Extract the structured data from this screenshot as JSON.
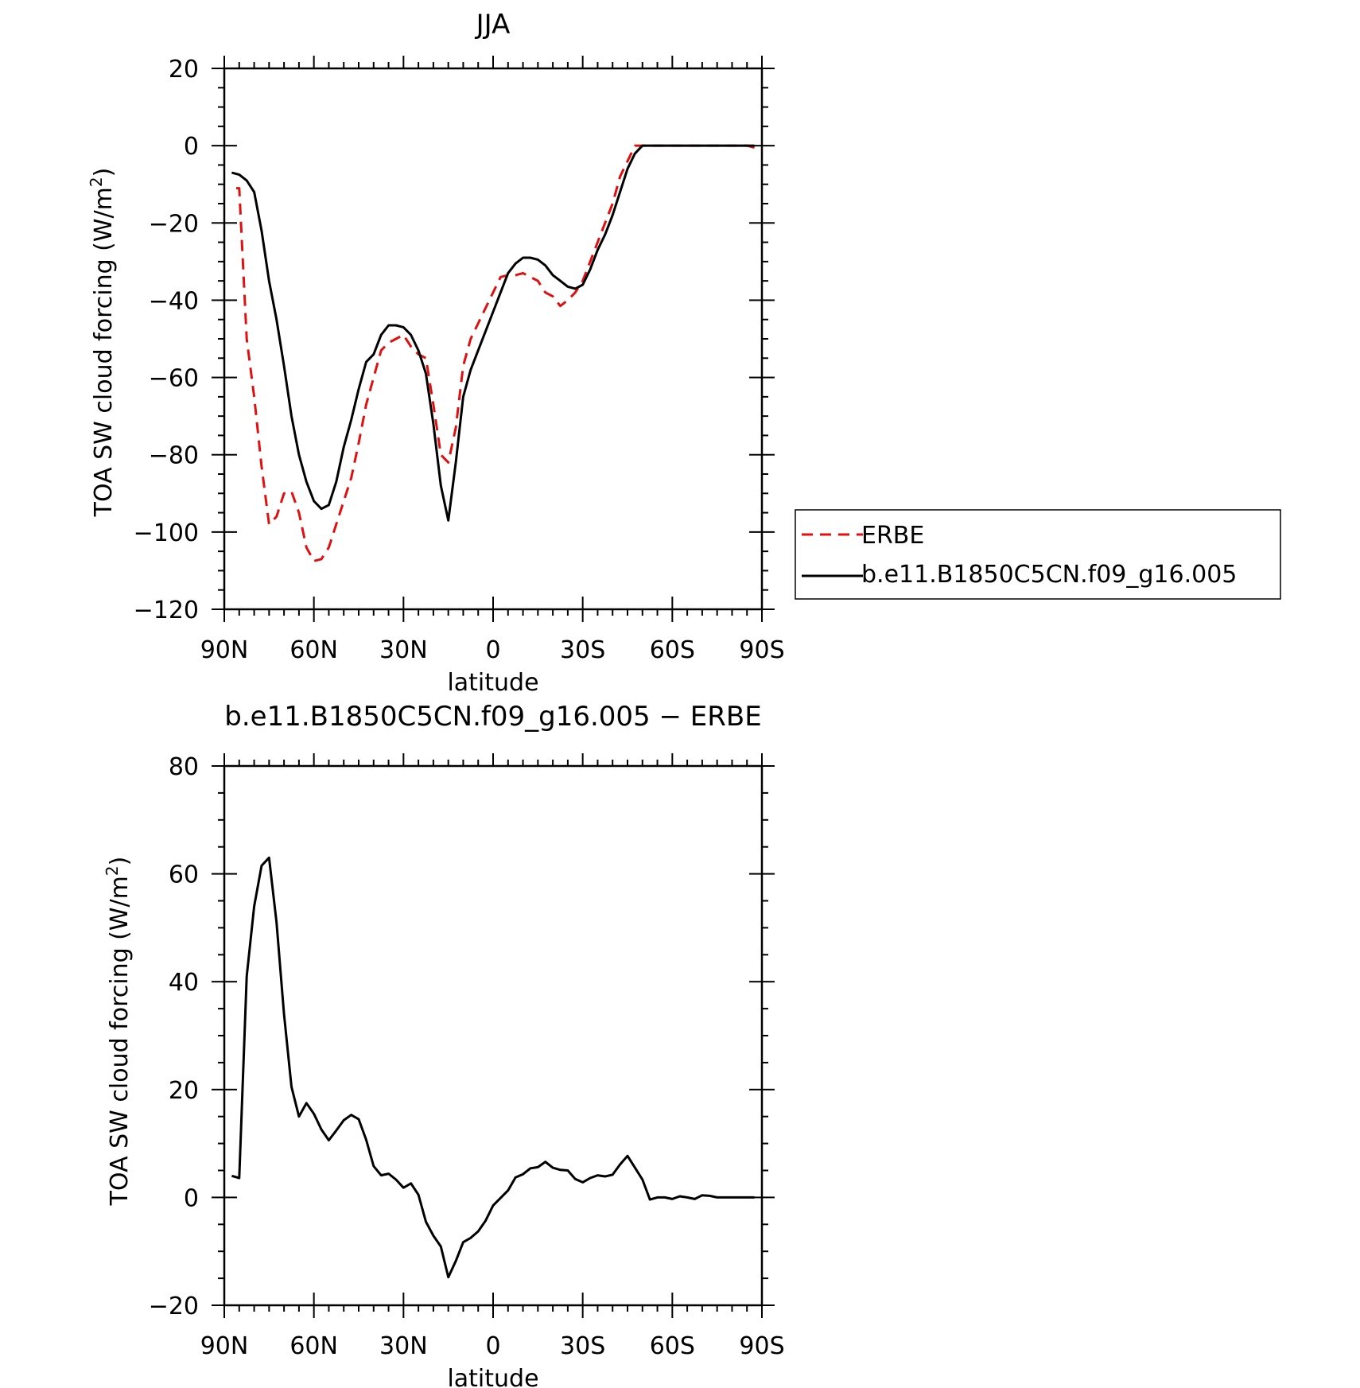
{
  "chart_data": [
    {
      "type": "line",
      "title": "JJA",
      "xlabel": "latitude",
      "ylabel_main": "TOA SW cloud forcing (W/m",
      "ylabel_sup": "2",
      "ylabel_close": ")",
      "xlim": [
        90,
        -90
      ],
      "ylim": [
        -120,
        20
      ],
      "xticks": [
        {
          "value": 90,
          "label": "90N"
        },
        {
          "value": 60,
          "label": "60N"
        },
        {
          "value": 30,
          "label": "30N"
        },
        {
          "value": 0,
          "label": "0"
        },
        {
          "value": -30,
          "label": "30S"
        },
        {
          "value": -60,
          "label": "60S"
        },
        {
          "value": -90,
          "label": "90S"
        }
      ],
      "yticks": [
        {
          "value": 20,
          "label": "20"
        },
        {
          "value": 0,
          "label": "0"
        },
        {
          "value": -20,
          "label": "−20"
        },
        {
          "value": -40,
          "label": "−40"
        },
        {
          "value": -60,
          "label": "−60"
        },
        {
          "value": -80,
          "label": "−80"
        },
        {
          "value": -100,
          "label": "−100"
        },
        {
          "value": -120,
          "label": "−120"
        }
      ],
      "legend": {
        "placement": "right, outside plot"
      },
      "series": [
        {
          "name": "ERBE",
          "color": "#e01010",
          "style": "dashed",
          "x": [
            86,
            85,
            82.5,
            80,
            77.5,
            75,
            72.5,
            70,
            67.5,
            65,
            62.5,
            60,
            57.5,
            55,
            52.5,
            50,
            47.5,
            45,
            42.5,
            40,
            37.5,
            35,
            32.5,
            30,
            27.5,
            25,
            22.5,
            20,
            17.5,
            15,
            12.5,
            10,
            7.5,
            5,
            2.5,
            0,
            -2.5,
            -5,
            -7.5,
            -10,
            -12.5,
            -15,
            -17.5,
            -20,
            -22.5,
            -25,
            -27.5,
            -30,
            -32.5,
            -35,
            -37.5,
            -40,
            -42.5,
            -45,
            -47.5,
            -50,
            -52.5,
            -55,
            -57.5,
            -60,
            -62.5,
            -65,
            -67.5,
            -70,
            -72.5,
            -75,
            -77.5,
            -80,
            -82.5,
            -85,
            -87.5
          ],
          "y": [
            -11,
            -11,
            -50,
            -65,
            -83,
            -98,
            -96,
            -90,
            -89.5,
            -95,
            -104,
            -107.5,
            -107,
            -104,
            -98,
            -92,
            -86,
            -77,
            -67,
            -60,
            -53,
            -51,
            -50,
            -49,
            -52,
            -54,
            -55,
            -67,
            -80,
            -82,
            -73,
            -57,
            -50,
            -46,
            -42,
            -38,
            -34,
            -33.5,
            -33.5,
            -33,
            -34,
            -35,
            -38,
            -39,
            -41.5,
            -40,
            -38,
            -35,
            -30,
            -25,
            -20,
            -15,
            -8,
            -4,
            0,
            0,
            0,
            0,
            0,
            0,
            0,
            0,
            0,
            0,
            0,
            0,
            0,
            0,
            0,
            0,
            -0.5
          ]
        },
        {
          "name": "b.e11.B1850C5CN.f09_g16.005",
          "color": "#000000",
          "style": "solid",
          "x": [
            87.5,
            85,
            82.5,
            80,
            77.5,
            75,
            72.5,
            70,
            67.5,
            65,
            62.5,
            60,
            57.5,
            55,
            52.5,
            50,
            47.5,
            45,
            42.5,
            40,
            37.5,
            35,
            32.5,
            30,
            27.5,
            25,
            22.5,
            20,
            17.5,
            15,
            12.5,
            10,
            7.5,
            5,
            2.5,
            0,
            -2.5,
            -5,
            -7.5,
            -10,
            -12.5,
            -15,
            -17.5,
            -20,
            -22.5,
            -25,
            -27.5,
            -30,
            -32.5,
            -35,
            -37.5,
            -40,
            -42.5,
            -45,
            -47.5,
            -50,
            -52.5,
            -55,
            -57.5,
            -60,
            -62.5,
            -65,
            -67.5,
            -70,
            -72.5,
            -75,
            -77.5,
            -80,
            -82.5,
            -85,
            -87.5
          ],
          "y": [
            -7,
            -7.5,
            -9,
            -12,
            -22,
            -35,
            -45,
            -57,
            -70,
            -80,
            -87,
            -92,
            -94,
            -93,
            -87,
            -78,
            -71,
            -63,
            -56,
            -54,
            -49,
            -46.5,
            -46.5,
            -47,
            -49,
            -53,
            -59,
            -72,
            -88,
            -97,
            -82,
            -65,
            -58,
            -53,
            -48,
            -43,
            -38,
            -33,
            -30.5,
            -29,
            -29,
            -29.5,
            -31,
            -33.5,
            -35,
            -36.5,
            -37,
            -36,
            -32,
            -27,
            -23,
            -18,
            -12,
            -6,
            -2,
            0,
            0,
            0,
            0,
            0,
            0,
            0,
            0,
            0,
            0,
            0,
            0,
            0,
            0,
            0,
            0
          ]
        }
      ]
    },
    {
      "type": "line",
      "title": "b.e11.B1850C5CN.f09_g16.005 − ERBE",
      "xlabel": "latitude",
      "ylabel_main": "TOA SW cloud forcing (W/m",
      "ylabel_sup": "2",
      "ylabel_close": ")",
      "xlim": [
        90,
        -90
      ],
      "ylim": [
        -20,
        80
      ],
      "xticks": [
        {
          "value": 90,
          "label": "90N"
        },
        {
          "value": 60,
          "label": "60N"
        },
        {
          "value": 30,
          "label": "30N"
        },
        {
          "value": 0,
          "label": "0"
        },
        {
          "value": -30,
          "label": "30S"
        },
        {
          "value": -60,
          "label": "60S"
        },
        {
          "value": -90,
          "label": "90S"
        }
      ],
      "yticks": [
        {
          "value": 80,
          "label": "80"
        },
        {
          "value": 60,
          "label": "60"
        },
        {
          "value": 40,
          "label": "40"
        },
        {
          "value": 20,
          "label": "20"
        },
        {
          "value": 0,
          "label": "0"
        },
        {
          "value": -20,
          "label": "−20"
        }
      ],
      "series": [
        {
          "color": "#000000",
          "style": "solid",
          "x": [
            87.5,
            85,
            82.5,
            80,
            77.5,
            75,
            72.5,
            70,
            67.5,
            65,
            62.5,
            60,
            57.5,
            55,
            52.5,
            50,
            47.5,
            45,
            42.5,
            40,
            37.5,
            35,
            32.5,
            30,
            27.5,
            25,
            22.5,
            20,
            17.5,
            15,
            12.5,
            10,
            7.5,
            5,
            2.5,
            0,
            -2.5,
            -5,
            -7.5,
            -10,
            -12.5,
            -15,
            -17.5,
            -20,
            -22.5,
            -25,
            -27.5,
            -30,
            -32.5,
            -35,
            -37.5,
            -40,
            -42.5,
            -45,
            -47.5,
            -50,
            -52.5,
            -55,
            -57.5,
            -60,
            -62.5,
            -65,
            -67.5,
            -70,
            -72.5,
            -75,
            -77.5,
            -80,
            -82.5,
            -85,
            -87.5
          ],
          "y": [
            4,
            3.6,
            41,
            54,
            61.5,
            63,
            51,
            34,
            20.5,
            15,
            17.5,
            15.5,
            12.6,
            10.6,
            12.4,
            14.3,
            15.3,
            14.5,
            10.7,
            5.8,
            4.1,
            4.4,
            3.3,
            1.8,
            2.6,
            0.5,
            -4.5,
            -7.1,
            -9.1,
            -14.8,
            -11.8,
            -8.3,
            -7.5,
            -6.3,
            -4.3,
            -1.5,
            -0.1,
            1.3,
            3.7,
            4.3,
            5.4,
            5.6,
            6.6,
            5.5,
            5.1,
            5,
            3.4,
            2.8,
            3.6,
            4.1,
            3.9,
            4.2,
            6.1,
            7.7,
            5.5,
            3.3,
            -0.4,
            0,
            0,
            -0.3,
            0.2,
            0,
            -0.3,
            0.4,
            0.3,
            0,
            0,
            0,
            0,
            0,
            0
          ]
        }
      ]
    }
  ]
}
